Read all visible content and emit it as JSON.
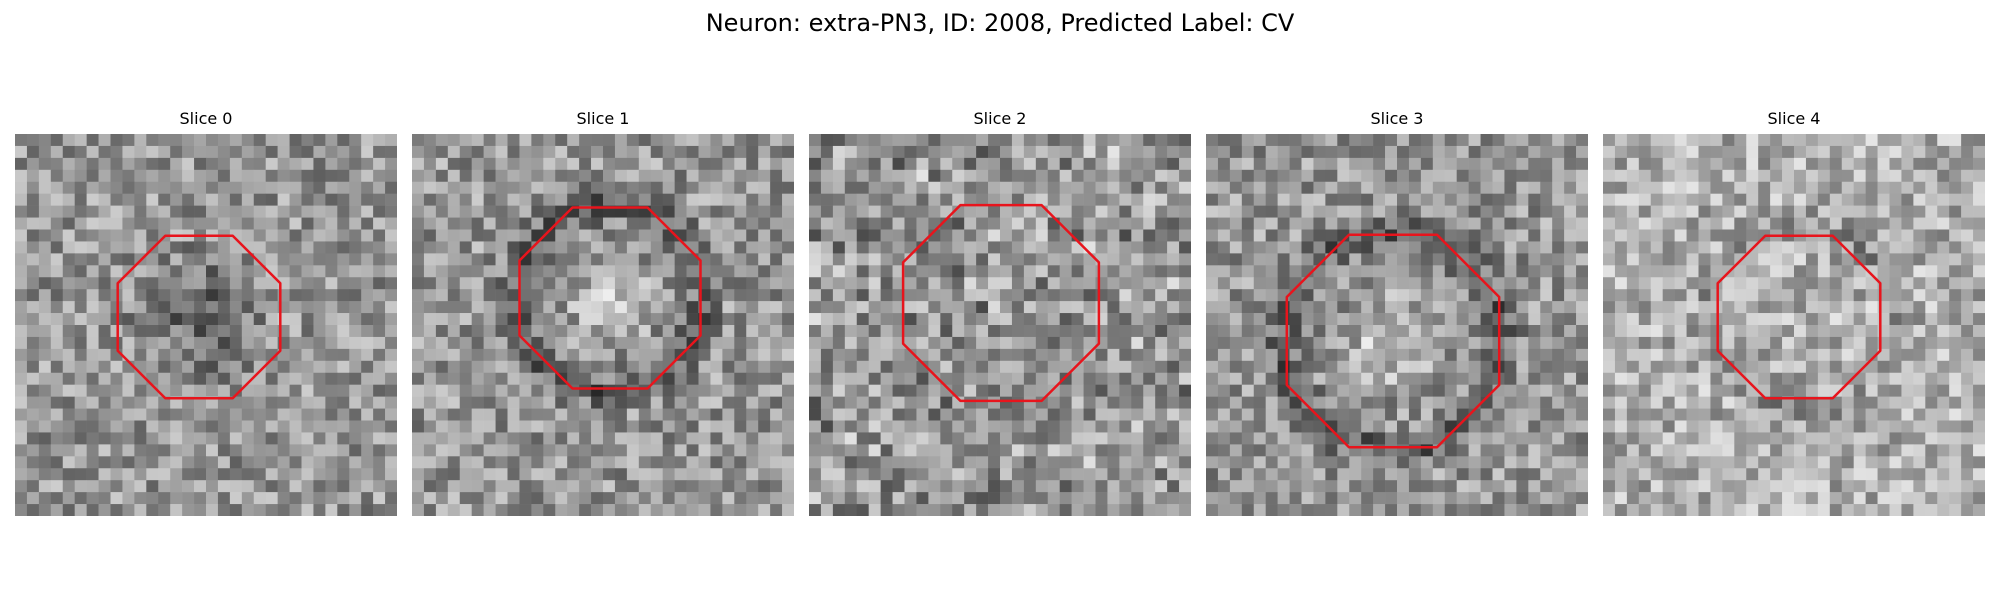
{
  "figure": {
    "title": "Neuron: extra-PN3, ID: 2008, Predicted Label: CV"
  },
  "panels": [
    {
      "title": "Slice 0",
      "seed": 11,
      "pattern": "dark-blob"
    },
    {
      "title": "Slice 1",
      "seed": 23,
      "pattern": "bright-core-ring"
    },
    {
      "title": "Slice 2",
      "seed": 37,
      "pattern": "noisy"
    },
    {
      "title": "Slice 3",
      "seed": 53,
      "pattern": "bright-core-ring"
    },
    {
      "title": "Slice 4",
      "seed": 71,
      "pattern": "faint"
    }
  ],
  "style": {
    "contour_color": "#e8141c",
    "colormap": "gray"
  }
}
